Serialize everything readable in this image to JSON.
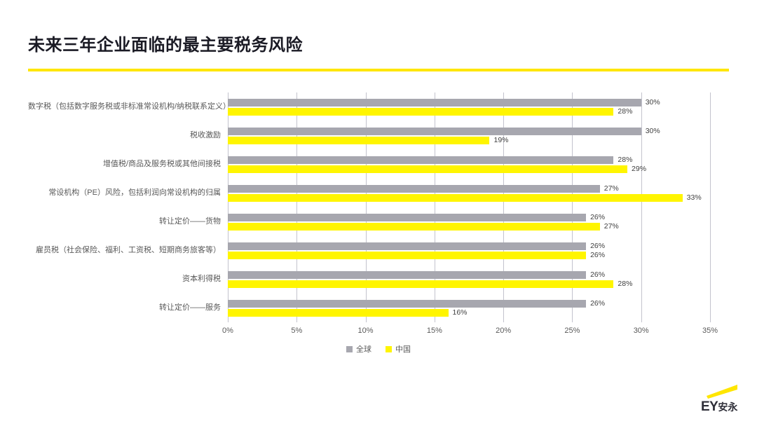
{
  "page": {
    "title": "未来三年企业面临的最主要税务风险",
    "accent_color": "#ffe600",
    "background_color": "#ffffff"
  },
  "chart_data": {
    "type": "bar",
    "orientation": "horizontal",
    "title": "未来三年企业面临的最主要税务风险",
    "categories": [
      "数字税（包括数字服务税或非标准常设机构/纳税联系定义）",
      "税收激励",
      "增值税/商品及服务税或其他间接税",
      "常设机构（PE）风险，包括利润向常设机构的归属",
      "转让定价——货物",
      "雇员税（社会保险、福利、工资税、短期商务旅客等）",
      "资本利得税",
      "转让定价——服务"
    ],
    "series": [
      {
        "name": "全球",
        "color": "#a7a7af",
        "values": [
          30,
          30,
          28,
          27,
          26,
          26,
          26,
          26
        ]
      },
      {
        "name": "中国",
        "color": "#fff500",
        "values": [
          28,
          19,
          29,
          33,
          27,
          26,
          28,
          16
        ]
      }
    ],
    "value_label_suffix": "%",
    "xlim": [
      0,
      35
    ],
    "x_ticks": [
      "0%",
      "5%",
      "10%",
      "15%",
      "20%",
      "25%",
      "30%",
      "35%"
    ],
    "grid": "vertical",
    "legend_position": "bottom",
    "gridline_color": "#c3c3cd"
  },
  "logo": {
    "ey": "EY",
    "cn": "安永",
    "beam_color": "#ffe600"
  }
}
